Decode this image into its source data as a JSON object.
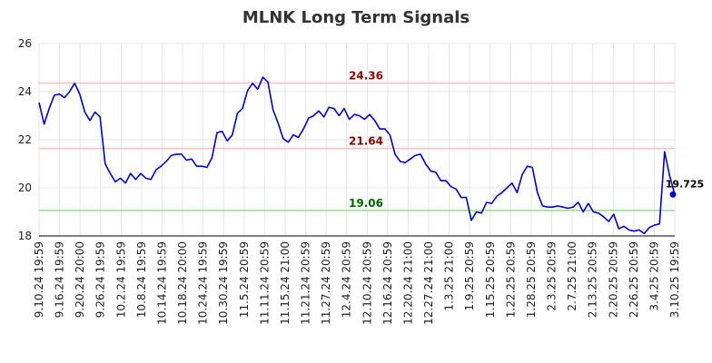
{
  "chart_data": {
    "type": "line",
    "title": "MLNK Long Term Signals",
    "xlabel": "",
    "ylabel": "",
    "ylim": [
      18,
      26
    ],
    "yticks": [
      "18",
      "20",
      "22",
      "24",
      "26"
    ],
    "grid": true,
    "x_tick_labels": [
      "9.10.24 19:59",
      "9.16.24 19:59",
      "9.20.24 20:00",
      "9.26.24 19:59",
      "10.2.24 19:59",
      "10.8.24 19:59",
      "10.14.24 19:59",
      "10.18.24 20:00",
      "10.24.24 19:59",
      "10.30.24 19:59",
      "11.5.24 20:59",
      "11.11.24 20:59",
      "11.15.24 21:00",
      "11.21.24 20:59",
      "11.27.24 20:59",
      "12.4.24 20:59",
      "12.10.24 20:59",
      "12.16.24 20:59",
      "12.20.24 21:00",
      "12.27.24 21:00",
      "1.3.25 21:00",
      "1.9.25 20:59",
      "1.15.25 20:59",
      "1.22.25 20:59",
      "1.28.25 20:59",
      "2.3.25 20:59",
      "2.7.25 21:00",
      "2.13.25 20:59",
      "2.20.25 20:59",
      "2.26.25 20:59",
      "3.4.25 20:59",
      "3.10.25 19:59"
    ],
    "reference_lines": [
      {
        "label": "24.36",
        "value": 24.36,
        "color": "#ffc0c0",
        "label_color": "#8b0000"
      },
      {
        "label": "21.64",
        "value": 21.64,
        "color": "#ffc0c0",
        "label_color": "#8b0000"
      },
      {
        "label": "19.06",
        "value": 19.06,
        "color": "#90e090",
        "label_color": "#006400"
      }
    ],
    "series": [
      {
        "color": "#0000cc",
        "values": [
          23.55,
          22.65,
          23.3,
          23.85,
          23.9,
          23.75,
          24.0,
          24.35,
          23.9,
          23.15,
          22.8,
          23.15,
          22.95,
          21.0,
          20.6,
          20.25,
          20.4,
          20.2,
          20.6,
          20.35,
          20.6,
          20.4,
          20.35,
          20.75,
          20.9,
          21.1,
          21.35,
          21.4,
          21.4,
          21.15,
          21.2,
          20.9,
          20.9,
          20.85,
          21.25,
          22.3,
          22.35,
          21.95,
          22.2,
          23.1,
          23.3,
          24.05,
          24.35,
          24.1,
          24.6,
          24.4,
          23.25,
          22.7,
          22.05,
          21.9,
          22.2,
          22.1,
          22.45,
          22.9,
          23.0,
          23.2,
          22.95,
          23.35,
          23.3,
          23.0,
          23.3,
          22.85,
          23.05,
          23.0,
          22.85,
          23.05,
          22.8,
          22.45,
          22.45,
          22.2,
          21.4,
          21.1,
          21.05,
          21.2,
          21.35,
          21.4,
          21.0,
          20.7,
          20.65,
          20.3,
          20.3,
          20.05,
          19.95,
          19.6,
          19.6,
          18.65,
          19.0,
          18.95,
          19.4,
          19.35,
          19.65,
          19.8,
          20.0,
          20.2,
          19.8,
          20.55,
          20.9,
          20.85,
          19.8,
          19.25,
          19.2,
          19.2,
          19.25,
          19.2,
          19.15,
          19.2,
          19.4,
          19.0,
          19.35,
          19.0,
          18.95,
          18.8,
          18.6,
          18.9,
          18.3,
          18.4,
          18.25,
          18.2,
          18.25,
          18.1,
          18.35,
          18.45,
          18.5,
          21.5,
          20.5,
          19.725
        ]
      }
    ],
    "last_value": {
      "label": "19.725",
      "value": 19.725
    }
  }
}
